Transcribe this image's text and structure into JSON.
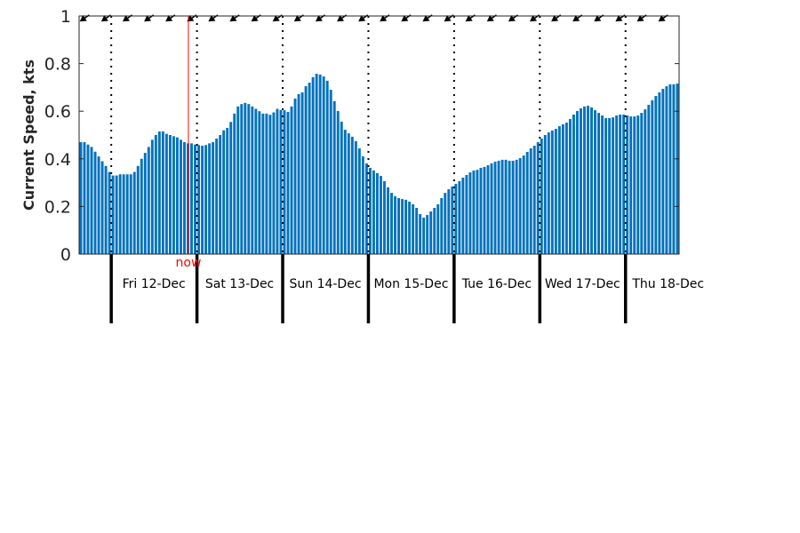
{
  "chart_data": {
    "type": "bar",
    "title": "",
    "xlabel": "",
    "ylabel": "Current Speed, kts",
    "ylim": [
      0,
      1
    ],
    "yticks": [
      "0",
      "0.2",
      "0.4",
      "0.6",
      "0.8",
      "1"
    ],
    "bar_interval": "1 hour",
    "day_labels": [
      "Fri 12-Dec",
      "Sat 13-Dec",
      "Sun 14-Dec",
      "Mon 15-Dec",
      "Tue 16-Dec",
      "Wed 17-Dec",
      "Thu 18-Dec"
    ],
    "hours_before_first_day": 9,
    "now_label": "now",
    "now_hour_index": 30.6,
    "arrow_every_hours": 6,
    "colors": {
      "bar": "#0072bd",
      "now": "#ff0000",
      "axis": "#262626"
    },
    "values": [
      0.47,
      0.47,
      0.46,
      0.45,
      0.43,
      0.41,
      0.39,
      0.37,
      0.345,
      0.33,
      0.33,
      0.335,
      0.335,
      0.335,
      0.335,
      0.345,
      0.37,
      0.4,
      0.425,
      0.45,
      0.48,
      0.5,
      0.515,
      0.515,
      0.505,
      0.5,
      0.495,
      0.49,
      0.48,
      0.47,
      0.465,
      0.465,
      0.46,
      0.458,
      0.455,
      0.458,
      0.465,
      0.47,
      0.485,
      0.5,
      0.52,
      0.53,
      0.555,
      0.59,
      0.62,
      0.63,
      0.635,
      0.63,
      0.62,
      0.61,
      0.6,
      0.59,
      0.59,
      0.585,
      0.595,
      0.61,
      0.605,
      0.604,
      0.597,
      0.62,
      0.653,
      0.672,
      0.679,
      0.705,
      0.72,
      0.743,
      0.757,
      0.754,
      0.746,
      0.728,
      0.69,
      0.642,
      0.601,
      0.556,
      0.522,
      0.507,
      0.493,
      0.474,
      0.444,
      0.41,
      0.381,
      0.362,
      0.351,
      0.34,
      0.328,
      0.306,
      0.28,
      0.257,
      0.243,
      0.235,
      0.231,
      0.228,
      0.22,
      0.209,
      0.194,
      0.168,
      0.153,
      0.164,
      0.179,
      0.194,
      0.209,
      0.235,
      0.257,
      0.272,
      0.284,
      0.295,
      0.306,
      0.321,
      0.332,
      0.343,
      0.351,
      0.354,
      0.362,
      0.366,
      0.373,
      0.381,
      0.388,
      0.392,
      0.396,
      0.396,
      0.392,
      0.392,
      0.396,
      0.403,
      0.414,
      0.429,
      0.444,
      0.455,
      0.47,
      0.485,
      0.5,
      0.511,
      0.519,
      0.526,
      0.537,
      0.545,
      0.552,
      0.567,
      0.586,
      0.601,
      0.612,
      0.62,
      0.623,
      0.616,
      0.604,
      0.593,
      0.582,
      0.571,
      0.571,
      0.574,
      0.582,
      0.586,
      0.586,
      0.582,
      0.578,
      0.578,
      0.582,
      0.593,
      0.608,
      0.627,
      0.646,
      0.664,
      0.679,
      0.694,
      0.705,
      0.713,
      0.713,
      0.716
    ]
  }
}
